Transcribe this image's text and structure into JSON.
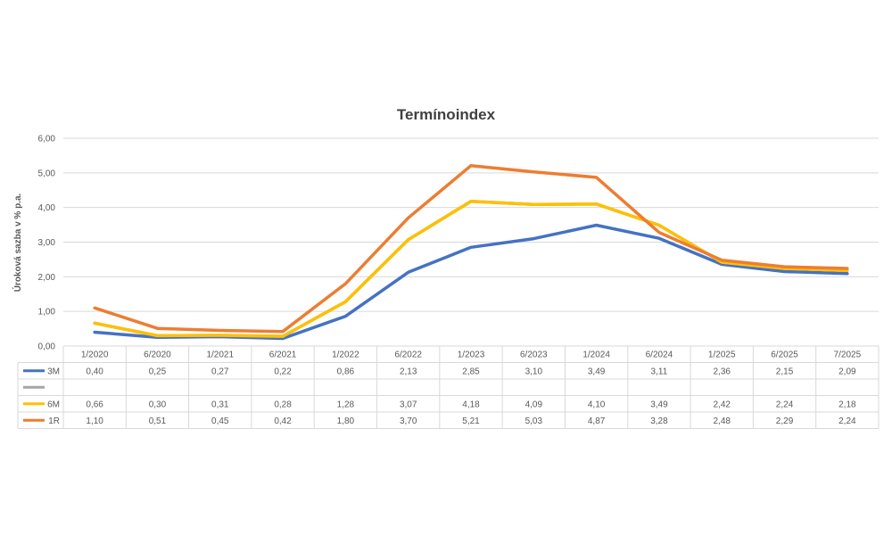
{
  "chart_data": {
    "type": "line",
    "title": "Termínoindex",
    "ylabel": "Úroková sazba v % p.a.",
    "xlabel": "",
    "ylim": [
      0,
      6
    ],
    "yticks": [
      "0,00",
      "1,00",
      "2,00",
      "3,00",
      "4,00",
      "5,00",
      "6,00"
    ],
    "grid": true,
    "legend": "data-table",
    "categories": [
      "1/2020",
      "6/2020",
      "1/2021",
      "6/2021",
      "1/2022",
      "6/2022",
      "1/2023",
      "6/2023",
      "1/2024",
      "6/2024",
      "1/2025",
      "6/2025",
      "7/2025"
    ],
    "series": [
      {
        "name": "3M",
        "color": "#4472C4",
        "values": [
          0.4,
          0.25,
          0.27,
          0.22,
          0.86,
          2.13,
          2.85,
          3.1,
          3.49,
          3.11,
          2.36,
          2.15,
          2.09
        ],
        "labels": [
          "0,40",
          "0,25",
          "0,27",
          "0,22",
          "0,86",
          "2,13",
          "2,85",
          "3,10",
          "3,49",
          "3,11",
          "2,36",
          "2,15",
          "2,09"
        ]
      },
      {
        "name": "",
        "color": "#A5A5A5",
        "values": [
          0.66,
          0.3,
          0.31,
          0.28,
          1.28,
          3.07,
          4.18,
          4.09,
          4.1,
          3.49,
          2.42,
          2.24,
          2.18
        ],
        "labels": []
      },
      {
        "name": "6M",
        "color": "#FFC000",
        "values": [
          0.66,
          0.3,
          0.31,
          0.28,
          1.28,
          3.07,
          4.18,
          4.09,
          4.1,
          3.49,
          2.42,
          2.24,
          2.18
        ],
        "labels": [
          "0,66",
          "0,30",
          "0,31",
          "0,28",
          "1,28",
          "3,07",
          "4,18",
          "4,09",
          "4,10",
          "3,49",
          "2,42",
          "2,24",
          "2,18"
        ]
      },
      {
        "name": "1R",
        "color": "#ED7D31",
        "values": [
          1.1,
          0.51,
          0.45,
          0.42,
          1.8,
          3.7,
          5.21,
          5.03,
          4.87,
          3.28,
          2.48,
          2.29,
          2.24
        ],
        "labels": [
          "1,10",
          "0,51",
          "0,45",
          "0,42",
          "1,80",
          "3,70",
          "5,21",
          "5,03",
          "4,87",
          "3,28",
          "2,48",
          "2,29",
          "2,24"
        ]
      }
    ]
  }
}
